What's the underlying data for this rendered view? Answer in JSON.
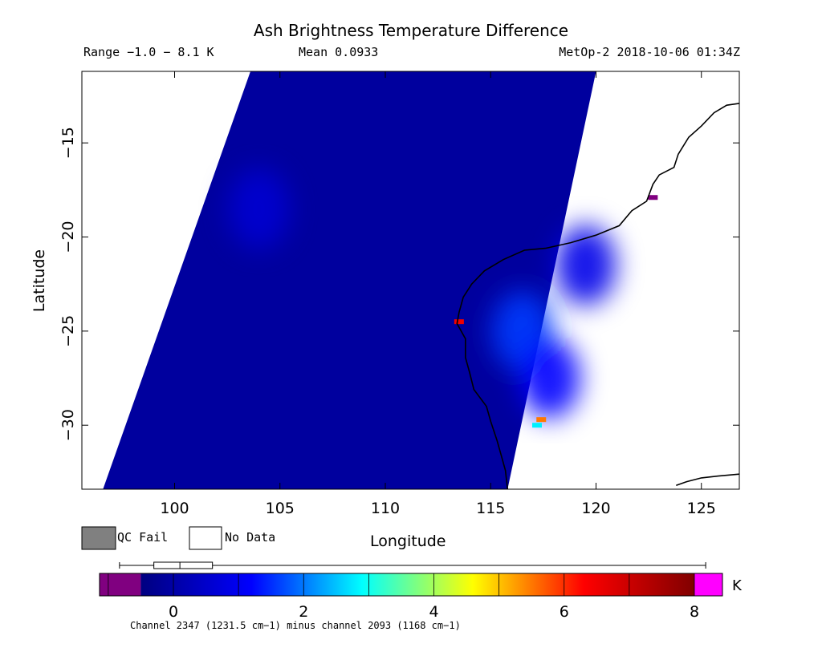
{
  "header": {
    "title": "Ash Brightness Temperature Difference",
    "range": "Range −1.0 − 8.1 K",
    "mean": "Mean 0.0933",
    "satellite": "MetOp-2 2018-10-06 01:34Z"
  },
  "legend": {
    "qc_fail": "QC Fail",
    "no_data": "No Data",
    "qc_fail_color": "#808080",
    "no_data_color": "#ffffff"
  },
  "colorbar": {
    "unit": "K",
    "ticks": [
      "0",
      "2",
      "4",
      "6",
      "8"
    ],
    "tick_values": [
      0,
      2,
      4,
      6,
      8
    ],
    "range": [
      -1.0,
      8.1
    ],
    "low_color": "#800080",
    "high_color": "#ff00ff",
    "stops": [
      "#000080",
      "#0000ff",
      "#00ffff",
      "#ffff00",
      "#ff0000",
      "#800000"
    ],
    "caption": "Channel 2347 (1231.5 cm−1) minus channel 2093 (1168 cm−1)",
    "boxplot": {
      "min": -1.0,
      "q1": -0.3,
      "median": 0.1,
      "q3": 0.6,
      "max": 8.1
    }
  },
  "chart_data": {
    "type": "heatmap",
    "xlabel": "Longitude",
    "ylabel": "Latitude",
    "xlim": [
      95.6,
      126.8
    ],
    "ylim": [
      -33.4,
      -11.2
    ],
    "x_ticks": [
      100,
      105,
      110,
      115,
      120,
      125
    ],
    "y_ticks": [
      -15,
      -20,
      -25,
      -30
    ],
    "x_tick_labels": [
      "100",
      "105",
      "110",
      "115",
      "120",
      "125"
    ],
    "y_tick_labels": [
      "−15",
      "−20",
      "−25",
      "−30"
    ],
    "swath_corners": [
      [
        103.6,
        -11.2
      ],
      [
        120.0,
        -11.2
      ],
      [
        115.8,
        -33.4
      ],
      [
        96.6,
        -33.4
      ]
    ],
    "background_value": -0.1,
    "elevated_regions": [
      {
        "lon": 116.5,
        "lat": -25.0,
        "value": 1.6
      },
      {
        "lon": 117.8,
        "lat": -27.5,
        "value": 1.2
      },
      {
        "lon": 119.5,
        "lat": -21.5,
        "value": 0.9
      },
      {
        "lon": 104.0,
        "lat": -18.5,
        "value": 0.6
      }
    ],
    "hotspots": [
      {
        "lon": 117.4,
        "lat": -29.7,
        "value": 5.5
      },
      {
        "lon": 117.2,
        "lat": -30.0,
        "value": 2.8
      },
      {
        "lon": 113.5,
        "lat": -24.5,
        "value": 6.5
      },
      {
        "lon": 122.7,
        "lat": -17.9,
        "value": -1.0
      }
    ],
    "coastline": [
      [
        126.8,
        -12.9
      ],
      [
        126.2,
        -13.0
      ],
      [
        125.6,
        -13.4
      ],
      [
        125.0,
        -14.1
      ],
      [
        124.4,
        -14.7
      ],
      [
        123.9,
        -15.6
      ],
      [
        123.7,
        -16.3
      ],
      [
        123.0,
        -16.7
      ],
      [
        122.7,
        -17.2
      ],
      [
        122.4,
        -18.1
      ],
      [
        121.7,
        -18.6
      ],
      [
        121.1,
        -19.4
      ],
      [
        120.0,
        -19.9
      ],
      [
        118.8,
        -20.3
      ],
      [
        117.6,
        -20.6
      ],
      [
        116.6,
        -20.7
      ],
      [
        115.6,
        -21.2
      ],
      [
        114.7,
        -21.8
      ],
      [
        114.1,
        -22.5
      ],
      [
        113.7,
        -23.2
      ],
      [
        113.5,
        -24.0
      ],
      [
        113.4,
        -24.6
      ],
      [
        113.8,
        -25.4
      ],
      [
        113.8,
        -26.4
      ],
      [
        114.0,
        -27.2
      ],
      [
        114.2,
        -28.1
      ],
      [
        114.8,
        -29.0
      ],
      [
        115.0,
        -29.8
      ],
      [
        115.3,
        -30.8
      ],
      [
        115.5,
        -31.6
      ],
      [
        115.7,
        -32.4
      ],
      [
        115.8,
        -33.4
      ]
    ],
    "coastline_east": [
      [
        123.8,
        -33.2
      ],
      [
        124.3,
        -33.0
      ],
      [
        125.0,
        -32.8
      ],
      [
        125.8,
        -32.7
      ],
      [
        126.8,
        -32.6
      ]
    ]
  }
}
